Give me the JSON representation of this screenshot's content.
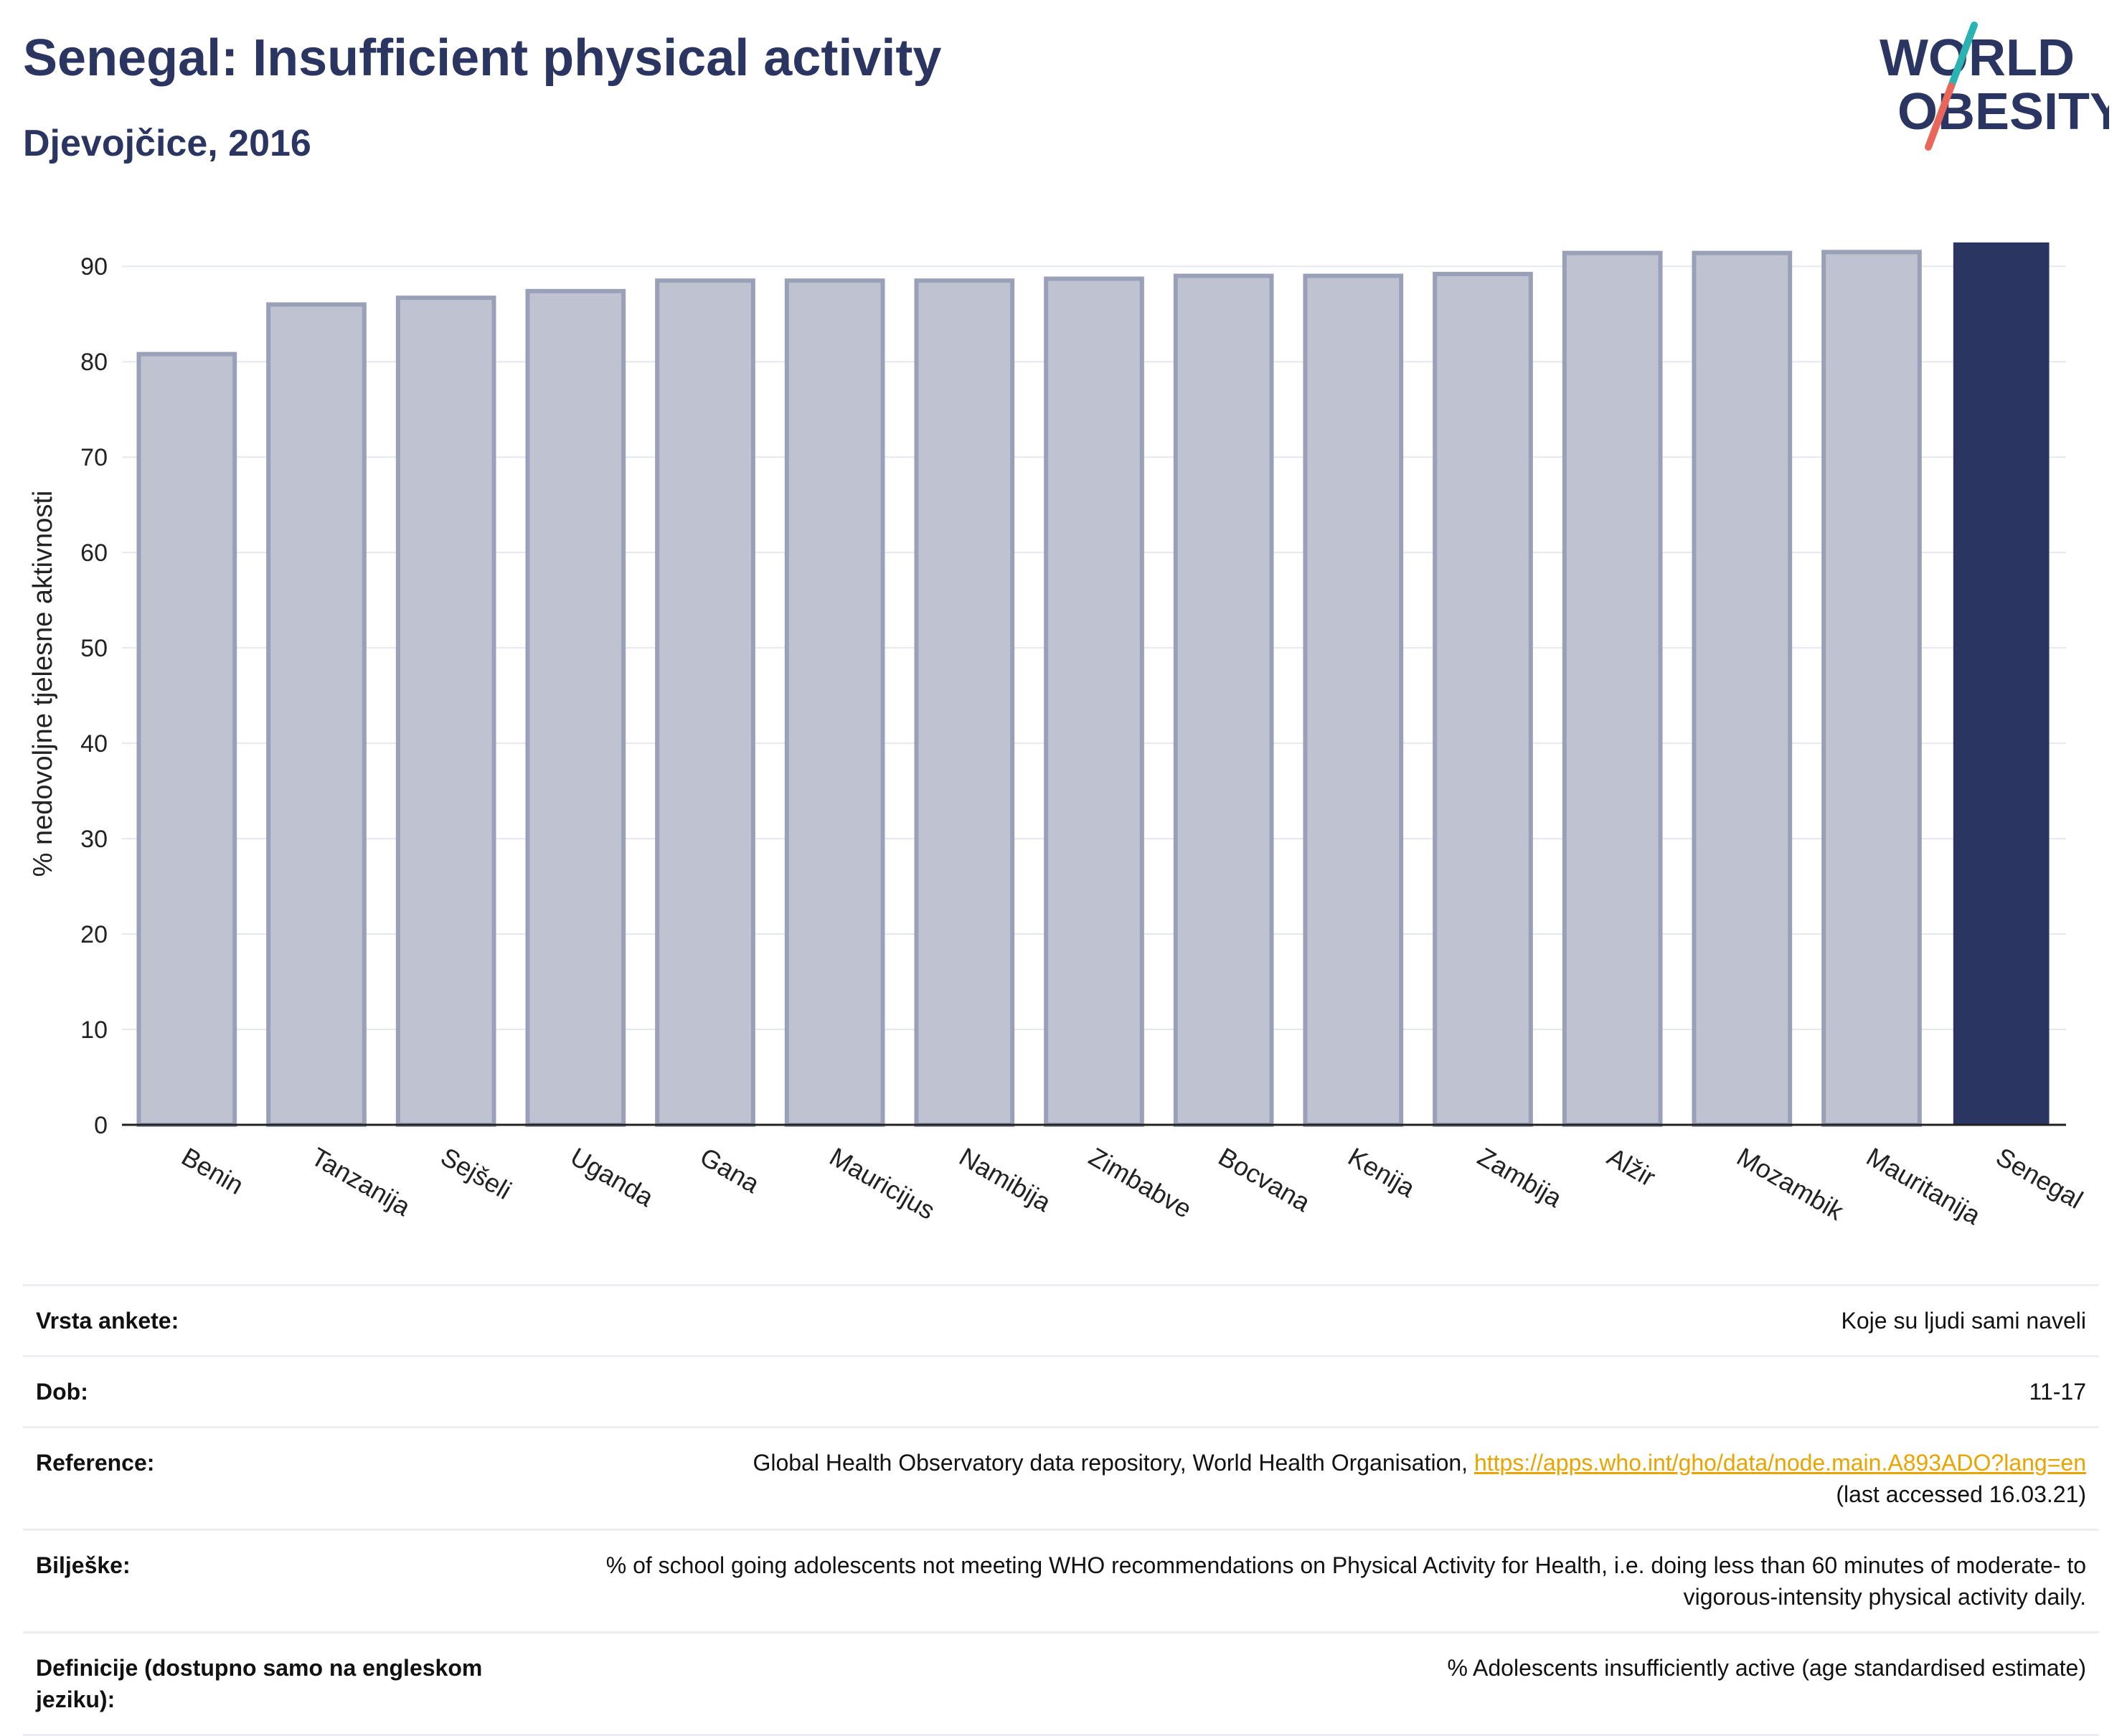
{
  "header": {
    "title": "Senegal: Insufficient physical activity",
    "subtitle": "Djevojčice, 2016"
  },
  "logo": {
    "line1": "WORLD",
    "line2": "OBESITY",
    "colors": {
      "text": "#2b3561",
      "teal": "#2ab3b1",
      "coral": "#e8665a"
    }
  },
  "chart_data": {
    "type": "bar",
    "categories": [
      "Benin",
      "Tanzanija",
      "Sejšeli",
      "Uganda",
      "Gana",
      "Mauricijus",
      "Namibija",
      "Zimbabve",
      "Bocvana",
      "Kenija",
      "Zambija",
      "Alžir",
      "Mozambik",
      "Mauritanija",
      "Senegal"
    ],
    "values": [
      80.8,
      86.0,
      86.7,
      87.4,
      88.5,
      88.5,
      88.5,
      88.7,
      89.0,
      89.0,
      89.2,
      91.4,
      91.4,
      91.5,
      92.5
    ],
    "highlight": "Senegal",
    "ylabel": "% nedovoljne tjelesne aktivnosti",
    "ylim": [
      0,
      92.5
    ],
    "yticks": [
      0,
      10,
      20,
      30,
      40,
      50,
      60,
      70,
      80,
      90
    ],
    "grid": true,
    "colors": {
      "bar": "#bfc2d0",
      "bar_border": "#9aa0b8",
      "highlight": "#2b3561",
      "grid": "#e6e8ef",
      "axis": "#222222"
    }
  },
  "info": [
    {
      "label": "Vrsta ankete:",
      "value": "Koje su ljudi sami naveli"
    },
    {
      "label": "Dob:",
      "value": "11-17"
    },
    {
      "label": "Reference:",
      "value": "Global Health Observatory data repository, World Health Organisation, ",
      "link": "https://apps.who.int/gho/data/node.main.A893ADO?lang=en",
      "value2": "(last accessed 16.03.21)"
    },
    {
      "label": "Bilješke:",
      "value": "% of school going adolescents not meeting WHO recommendations on Physical Activity for Health, i.e. doing less than 60 minutes of moderate- to vigorous-intensity physical activity daily."
    },
    {
      "label": "Definicije (dostupno samo na engleskom jeziku):",
      "value": "% Adolescents insufficiently active (age standardised estimate)"
    }
  ]
}
